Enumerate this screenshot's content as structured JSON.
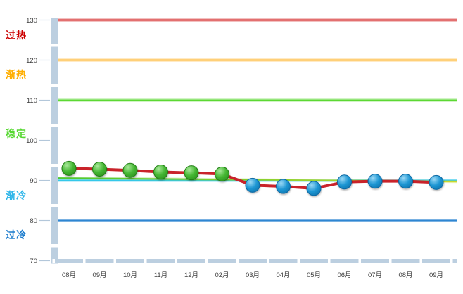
{
  "chart_data": {
    "type": "line",
    "title": "",
    "legend": "none",
    "grid": false,
    "categories": [
      "08月",
      "09月",
      "10月",
      "11月",
      "12月",
      "02月",
      "03月",
      "04月",
      "05月",
      "06月",
      "07月",
      "08月",
      "09月"
    ],
    "series": [
      {
        "name": "",
        "values": [
          93,
          92.8,
          92.5,
          92.1,
          91.9,
          91.6,
          88.8,
          88.5,
          88,
          89.6,
          89.8,
          89.8,
          89.5
        ],
        "line_color": "#c9232a",
        "marker_colors": [
          "green",
          "green",
          "green",
          "green",
          "green",
          "green",
          "blue",
          "blue",
          "blue",
          "blue",
          "blue",
          "blue",
          "blue"
        ]
      }
    ],
    "ylim": [
      70,
      130
    ],
    "yticks": [
      70,
      80,
      90,
      100,
      110,
      120,
      130
    ],
    "zone_trendlines": [
      {
        "label": "过热",
        "value": 130,
        "line_color": "#d42020",
        "label_color": "#cc0000",
        "label_at": 126.2
      },
      {
        "label": "渐热",
        "value": 120,
        "line_color": "#ffb52e",
        "label_color": "#ffae00",
        "label_at": 116.4
      },
      {
        "label": "稳定",
        "value": 110,
        "line_color": "#5cd833",
        "label_color": "#57d832",
        "label_at": 101.7
      },
      {
        "label": "渐冷",
        "value": 90,
        "line_color": "#35c8ea",
        "label_color": "#2fb6e9",
        "label_at": 86.2
      },
      {
        "label": "过冷",
        "value": 80,
        "line_color": "#2e86d2",
        "label_color": "#1779cc",
        "label_at": 76.4
      }
    ],
    "sloped_trendline": {
      "start_value": 90.6,
      "end_value": 89.7,
      "color_start": "#4ec930",
      "color_end": "#c9d92e"
    },
    "marker_palette": {
      "green": {
        "light": "#a9e89a",
        "mid": "#45b733",
        "dark": "#2f9420",
        "stroke": "#237f15"
      },
      "blue": {
        "light": "#9bd9f5",
        "mid": "#1f97d4",
        "dark": "#0e77b0",
        "stroke": "#0a67a3"
      }
    },
    "axis_colors": {
      "band": "#bccfe0",
      "tick": "#b3c7da",
      "label": "#3c3c3c"
    }
  }
}
